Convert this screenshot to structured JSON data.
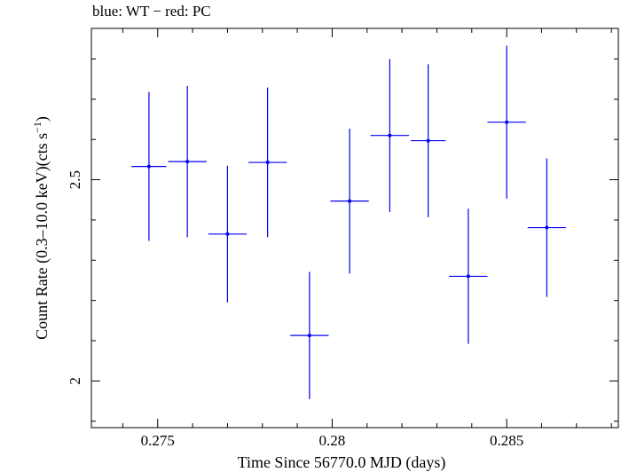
{
  "chart_data": {
    "type": "scatter",
    "title": "blue: WT − red: PC",
    "xlabel": "Time Since 56770.0 MJD (days)",
    "ylabel_main": "Count Rate (0.3–10.0 keV)(cts s",
    "ylabel_sup": "−1",
    "ylabel_close": ")",
    "xlim": [
      0.2731,
      0.2882
    ],
    "ylim": [
      1.884,
      2.876
    ],
    "x_ticks": [
      0.275,
      0.28,
      0.285
    ],
    "x_tick_labels": [
      "0.275",
      "0.28",
      "0.285"
    ],
    "y_ticks": [
      2,
      2.5
    ],
    "y_tick_labels": [
      "2",
      "2.5"
    ],
    "grid": false,
    "colors": {
      "WT": "#0000ee"
    },
    "series": [
      {
        "name": "WT",
        "points": [
          {
            "x": 0.27475,
            "xerr": 0.0005,
            "y": 2.533,
            "yerr": 0.185
          },
          {
            "x": 0.27585,
            "xerr": 0.00055,
            "y": 2.545,
            "yerr": 0.188
          },
          {
            "x": 0.277,
            "xerr": 0.00055,
            "y": 2.365,
            "yerr": 0.17
          },
          {
            "x": 0.27815,
            "xerr": 0.00055,
            "y": 2.543,
            "yerr": 0.186
          },
          {
            "x": 0.27935,
            "xerr": 0.00055,
            "y": 2.113,
            "yerr": 0.158
          },
          {
            "x": 0.2805,
            "xerr": 0.00055,
            "y": 2.447,
            "yerr": 0.18
          },
          {
            "x": 0.28165,
            "xerr": 0.00055,
            "y": 2.61,
            "yerr": 0.19
          },
          {
            "x": 0.28275,
            "xerr": 0.0005,
            "y": 2.597,
            "yerr": 0.19
          },
          {
            "x": 0.2839,
            "xerr": 0.00055,
            "y": 2.26,
            "yerr": 0.168
          },
          {
            "x": 0.285,
            "xerr": 0.00055,
            "y": 2.643,
            "yerr": 0.19
          },
          {
            "x": 0.28615,
            "xerr": 0.00055,
            "y": 2.381,
            "yerr": 0.172
          }
        ]
      }
    ]
  }
}
